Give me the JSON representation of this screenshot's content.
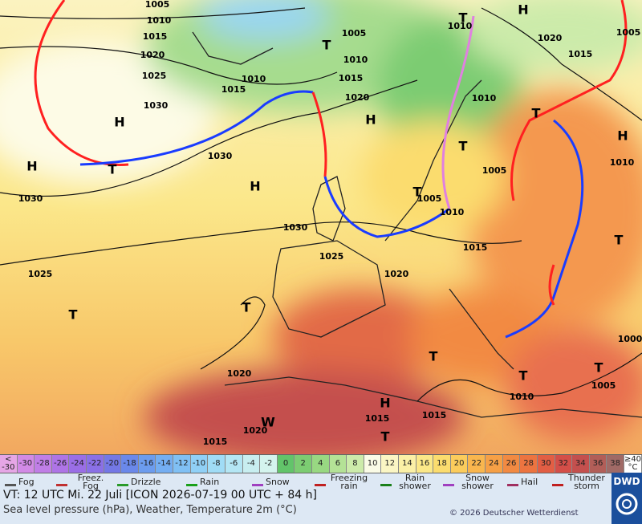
{
  "map": {
    "isobar_labels": [
      "1005",
      "1010",
      "1015",
      "1020",
      "1025",
      "1030",
      "1030",
      "1030",
      "1025",
      "1020",
      "1015",
      "1020",
      "1015",
      "1015",
      "1010",
      "1005",
      "1000",
      "1010",
      "1015",
      "1020",
      "1005",
      "1010",
      "1005",
      "1010",
      "1015",
      "1020",
      "1010",
      "1015",
      "1030",
      "1025",
      "1020",
      "1015",
      "1010",
      "1005",
      "1005",
      "1010"
    ],
    "pressure_centers": [
      "H",
      "H",
      "T",
      "H",
      "H",
      "T",
      "T",
      "T",
      "H",
      "T",
      "H",
      "T",
      "T",
      "T",
      "T",
      "T",
      "T",
      "H",
      "W",
      "T",
      "T"
    ]
  },
  "colorbar": [
    {
      "label": "< -30",
      "color": "#e6a6e6"
    },
    {
      "label": "-30",
      "color": "#d28ae6"
    },
    {
      "label": "-28",
      "color": "#c07ee6"
    },
    {
      "label": "-26",
      "color": "#ae74e6"
    },
    {
      "label": "-24",
      "color": "#9a6ee6"
    },
    {
      "label": "-22",
      "color": "#8a70e6"
    },
    {
      "label": "-20",
      "color": "#7478e6"
    },
    {
      "label": "-18",
      "color": "#6a88ea"
    },
    {
      "label": "-16",
      "color": "#6c9cee"
    },
    {
      "label": "-14",
      "color": "#74aef2"
    },
    {
      "label": "-12",
      "color": "#80c0f4"
    },
    {
      "label": "-10",
      "color": "#90d0f6"
    },
    {
      "label": "-8",
      "color": "#a0dcf6"
    },
    {
      "label": "-6",
      "color": "#b4e6f4"
    },
    {
      "label": "-4",
      "color": "#c8eef0"
    },
    {
      "label": "-2",
      "color": "#d4f4ee"
    },
    {
      "label": "0",
      "color": "#62c46a"
    },
    {
      "label": "2",
      "color": "#7ccc72"
    },
    {
      "label": "4",
      "color": "#98d882"
    },
    {
      "label": "6",
      "color": "#b4e296"
    },
    {
      "label": "8",
      "color": "#ccebaa"
    },
    {
      "label": "10",
      "color": "#fafbe6"
    },
    {
      "label": "12",
      "color": "#fbf6c4"
    },
    {
      "label": "14",
      "color": "#fbf0a6"
    },
    {
      "label": "16",
      "color": "#fbe888"
    },
    {
      "label": "18",
      "color": "#fbdc6e"
    },
    {
      "label": "20",
      "color": "#fbcc5c"
    },
    {
      "label": "22",
      "color": "#f9b64e"
    },
    {
      "label": "24",
      "color": "#f6a046"
    },
    {
      "label": "26",
      "color": "#f28a42"
    },
    {
      "label": "28",
      "color": "#ec7440"
    },
    {
      "label": "30",
      "color": "#e25e44"
    },
    {
      "label": "32",
      "color": "#d44e48"
    },
    {
      "label": "34",
      "color": "#c4504e"
    },
    {
      "label": "36",
      "color": "#b25e58"
    },
    {
      "label": "38",
      "color": "#a06a66"
    },
    {
      "label": "≥40 °C",
      "color": "#ffffff"
    }
  ],
  "legend": [
    "Fog",
    "Freez. Fog",
    "Drizzle",
    "Rain",
    "Snow",
    "Freezing rain",
    "Rain shower",
    "Snow shower",
    "Hail",
    "Thunder storm"
  ],
  "footer": {
    "valid_time": "VT: 12 UTC Mi.  22 Juli [ICON 2026-07-19  00 UTC + 84 h]",
    "description": "Sea level pressure (hPa), Weather, Temperature 2m (°C)",
    "copyright": "© 2026 Deutscher Wetterdienst",
    "logo": "DWD"
  }
}
